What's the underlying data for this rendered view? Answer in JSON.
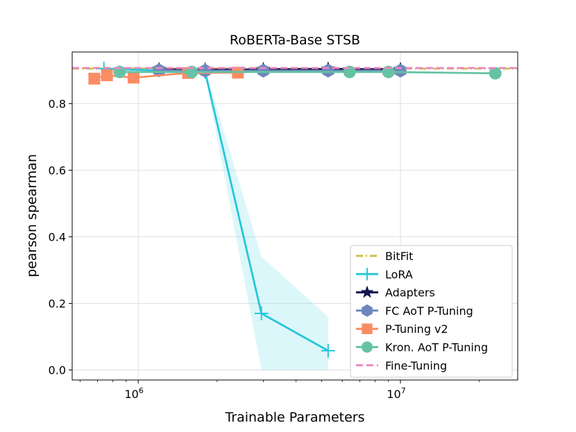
{
  "chart_data": {
    "type": "line",
    "title": "RoBERTa-Base STSB",
    "xlabel": "Trainable Parameters",
    "ylabel": "pearson spearman",
    "xscale": "log",
    "xlim": [
      560000,
      28000000
    ],
    "ylim": [
      -0.03,
      0.955
    ],
    "grid": true,
    "legend_position": "lower-right",
    "x_major_ticks": [
      {
        "value": 1000000,
        "label_base": "10",
        "label_exp": "6"
      },
      {
        "value": 10000000,
        "label_base": "10",
        "label_exp": "7"
      }
    ],
    "y_ticks": [
      {
        "value": 0.0,
        "label": "0.0"
      },
      {
        "value": 0.2,
        "label": "0.2"
      },
      {
        "value": 0.4,
        "label": "0.4"
      },
      {
        "value": 0.6,
        "label": "0.6"
      },
      {
        "value": 0.8,
        "label": "0.8"
      }
    ],
    "series": [
      {
        "name": "BitFit",
        "color": "#cfc04a",
        "marker": "none",
        "linestyle": "dashdot",
        "x": [
          560000,
          28000000
        ],
        "y": [
          0.905,
          0.905
        ]
      },
      {
        "name": "LoRA",
        "color": "#26c6da",
        "marker": "plus",
        "linestyle": "solid",
        "x": [
          740000,
          1800000,
          2950000,
          5300000
        ],
        "y": [
          0.905,
          0.895,
          0.17,
          0.058
        ],
        "band_lower": [
          0.9,
          0.885,
          0.0,
          0.0
        ],
        "band_upper": [
          0.91,
          0.905,
          0.34,
          0.16
        ],
        "band_color": "#8ce3ee"
      },
      {
        "name": "Adapters",
        "color": "#13134f",
        "marker": "star",
        "linestyle": "solid",
        "x": [
          1200000,
          1800000,
          3000000,
          5300000,
          10000000
        ],
        "y": [
          0.903,
          0.902,
          0.903,
          0.904,
          0.903
        ]
      },
      {
        "name": "FC AoT P-Tuning",
        "color": "#6e86bd",
        "marker": "hexagon",
        "linestyle": "solid",
        "x": [
          1200000,
          1800000,
          3000000,
          5300000,
          10000000
        ],
        "y": [
          0.9,
          0.899,
          0.899,
          0.899,
          0.899
        ]
      },
      {
        "name": "P-Tuning v2",
        "color": "#fa8c64",
        "marker": "square",
        "linestyle": "solid",
        "x": [
          680000,
          760000,
          960000,
          1550000,
          2400000
        ],
        "y": [
          0.875,
          0.885,
          0.878,
          0.892,
          0.893
        ]
      },
      {
        "name": "Kron. AoT P-Tuning",
        "color": "#66c2a5",
        "marker": "circle",
        "linestyle": "solid",
        "x": [
          850000,
          1600000,
          6400000,
          9000000,
          23000000
        ],
        "y": [
          0.895,
          0.895,
          0.895,
          0.895,
          0.891
        ]
      },
      {
        "name": "Fine-Tuning",
        "color": "#e78ac3",
        "marker": "none",
        "linestyle": "dashed",
        "x": [
          560000,
          28000000
        ],
        "y": [
          0.907,
          0.907
        ]
      }
    ]
  }
}
